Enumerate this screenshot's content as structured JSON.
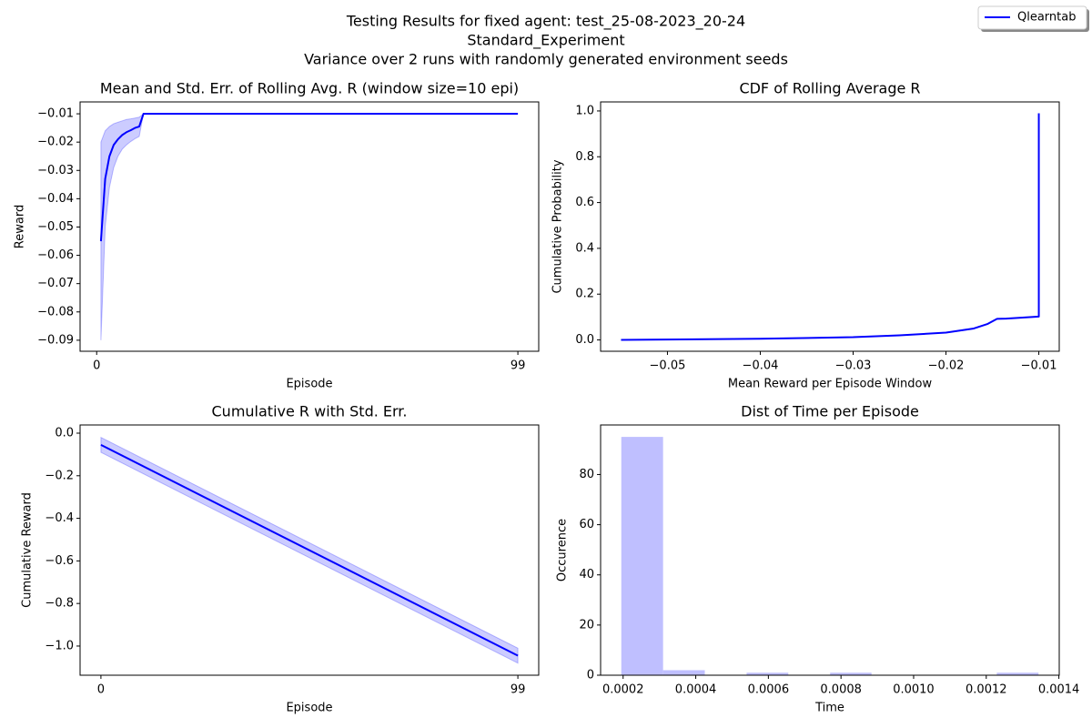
{
  "figure": {
    "title_lines": [
      "Testing Results for fixed agent: test_25-08-2023_20-24",
      "Standard_Experiment",
      "Variance over 2 runs with randomly generated environment seeds"
    ],
    "legend": {
      "labels": [
        "Qlearntab"
      ],
      "color": "#0000ff",
      "corner": "upper right"
    }
  },
  "chart_data": [
    {
      "type": "line",
      "title": "Mean and Std. Err. of Rolling Avg. R (window size=10 epi)",
      "xlabel": "Episode",
      "ylabel": "Reward",
      "x": [
        1,
        2,
        3,
        4,
        5,
        6,
        7,
        8,
        9,
        10,
        11,
        99
      ],
      "series": [
        {
          "color": "#0000ff",
          "band_color": "#0000ff",
          "values": [
            -0.055,
            -0.033,
            -0.025,
            -0.021,
            -0.019,
            -0.0175,
            -0.0165,
            -0.0158,
            -0.015,
            -0.0145,
            -0.01,
            -0.01
          ],
          "lower": [
            -0.09,
            -0.05,
            -0.036,
            -0.029,
            -0.025,
            -0.0225,
            -0.021,
            -0.0198,
            -0.0188,
            -0.018,
            -0.01,
            -0.01
          ],
          "upper": [
            -0.02,
            -0.016,
            -0.0145,
            -0.0135,
            -0.013,
            -0.0125,
            -0.012,
            -0.0118,
            -0.0115,
            -0.0112,
            -0.01,
            -0.01
          ]
        }
      ],
      "xlim": [
        -3.9,
        103.9
      ],
      "ylim": [
        -0.0939,
        -0.0058
      ],
      "xticks": [
        0,
        99
      ],
      "yticks": [
        {
          "value": -0.09,
          "label": "−0.09"
        },
        {
          "value": -0.08,
          "label": "−0.08"
        },
        {
          "value": -0.07,
          "label": "−0.07"
        },
        {
          "value": -0.06,
          "label": "−0.06"
        },
        {
          "value": -0.05,
          "label": "−0.05"
        },
        {
          "value": -0.04,
          "label": "−0.04"
        },
        {
          "value": -0.03,
          "label": "−0.03"
        },
        {
          "value": -0.02,
          "label": "−0.02"
        },
        {
          "value": -0.01,
          "label": "−0.01"
        }
      ]
    },
    {
      "type": "line",
      "title": "CDF of Rolling Average R",
      "xlabel": "Mean Reward per Episode Window",
      "ylabel": "Cumulative Probability",
      "x": [
        -0.055,
        -0.04,
        -0.03,
        -0.025,
        -0.02,
        -0.017,
        -0.0155,
        -0.0145,
        -0.0135,
        -0.01,
        -0.01
      ],
      "series": [
        {
          "color": "#0000ff",
          "values": [
            0,
            0.005,
            0.012,
            0.02,
            0.032,
            0.05,
            0.07,
            0.092,
            0.093,
            0.102,
            0.99
          ]
        }
      ],
      "xlim": [
        -0.0572,
        -0.0078
      ],
      "ylim": [
        -0.0495,
        1.0395
      ],
      "xticks": [
        {
          "value": -0.05,
          "label": "−0.05"
        },
        {
          "value": -0.04,
          "label": "−0.04"
        },
        {
          "value": -0.03,
          "label": "−0.03"
        },
        {
          "value": -0.02,
          "label": "−0.02"
        },
        {
          "value": -0.01,
          "label": "−0.01"
        }
      ],
      "yticks": [
        {
          "value": 0,
          "label": "0.0"
        },
        {
          "value": 0.2,
          "label": "0.2"
        },
        {
          "value": 0.4,
          "label": "0.4"
        },
        {
          "value": 0.6,
          "label": "0.6"
        },
        {
          "value": 0.8,
          "label": "0.8"
        },
        {
          "value": 1,
          "label": "1.0"
        }
      ]
    },
    {
      "type": "line",
      "title": "Cumulative R with Std. Err.",
      "xlabel": "Episode",
      "ylabel": "Cumulative Reward",
      "x": [
        0,
        99
      ],
      "series": [
        {
          "color": "#0000ff",
          "band_color": "#0000ff",
          "values": [
            -0.055,
            -1.045
          ],
          "lower": [
            -0.09,
            -1.08
          ],
          "upper": [
            -0.02,
            -1.01
          ]
        }
      ],
      "xlim": [
        -4.95,
        103.95
      ],
      "ylim": [
        -1.137,
        0.0385
      ],
      "xticks": [
        0,
        99
      ],
      "yticks": [
        {
          "value": -1,
          "label": "−1.0"
        },
        {
          "value": -0.8,
          "label": "−0.8"
        },
        {
          "value": -0.6,
          "label": "−0.6"
        },
        {
          "value": -0.4,
          "label": "−0.4"
        },
        {
          "value": -0.2,
          "label": "−0.2"
        },
        {
          "value": 0,
          "label": "0.0"
        }
      ]
    },
    {
      "type": "histogram",
      "title": "Dist of Time per Episode",
      "xlabel": "Time",
      "ylabel": "Occurence",
      "color": "#bfbfff",
      "bins": [
        0.000195,
        0.00031,
        0.000425,
        0.00054,
        0.000655,
        0.00077,
        0.000884,
        0.000999,
        0.001114,
        0.001229,
        0.001344
      ],
      "values": [
        95,
        2,
        0,
        1,
        0,
        1,
        0,
        0,
        0,
        1
      ],
      "xlim": [
        0.000138,
        0.001401
      ],
      "ylim": [
        0,
        99.75
      ],
      "xticks": [
        0.0002,
        0.0004,
        0.0006,
        0.0008,
        {
          "value": 0.001,
          "label": "0.0010"
        },
        0.0012,
        0.0014
      ],
      "yticks": [
        0,
        20,
        40,
        60,
        80
      ]
    }
  ]
}
